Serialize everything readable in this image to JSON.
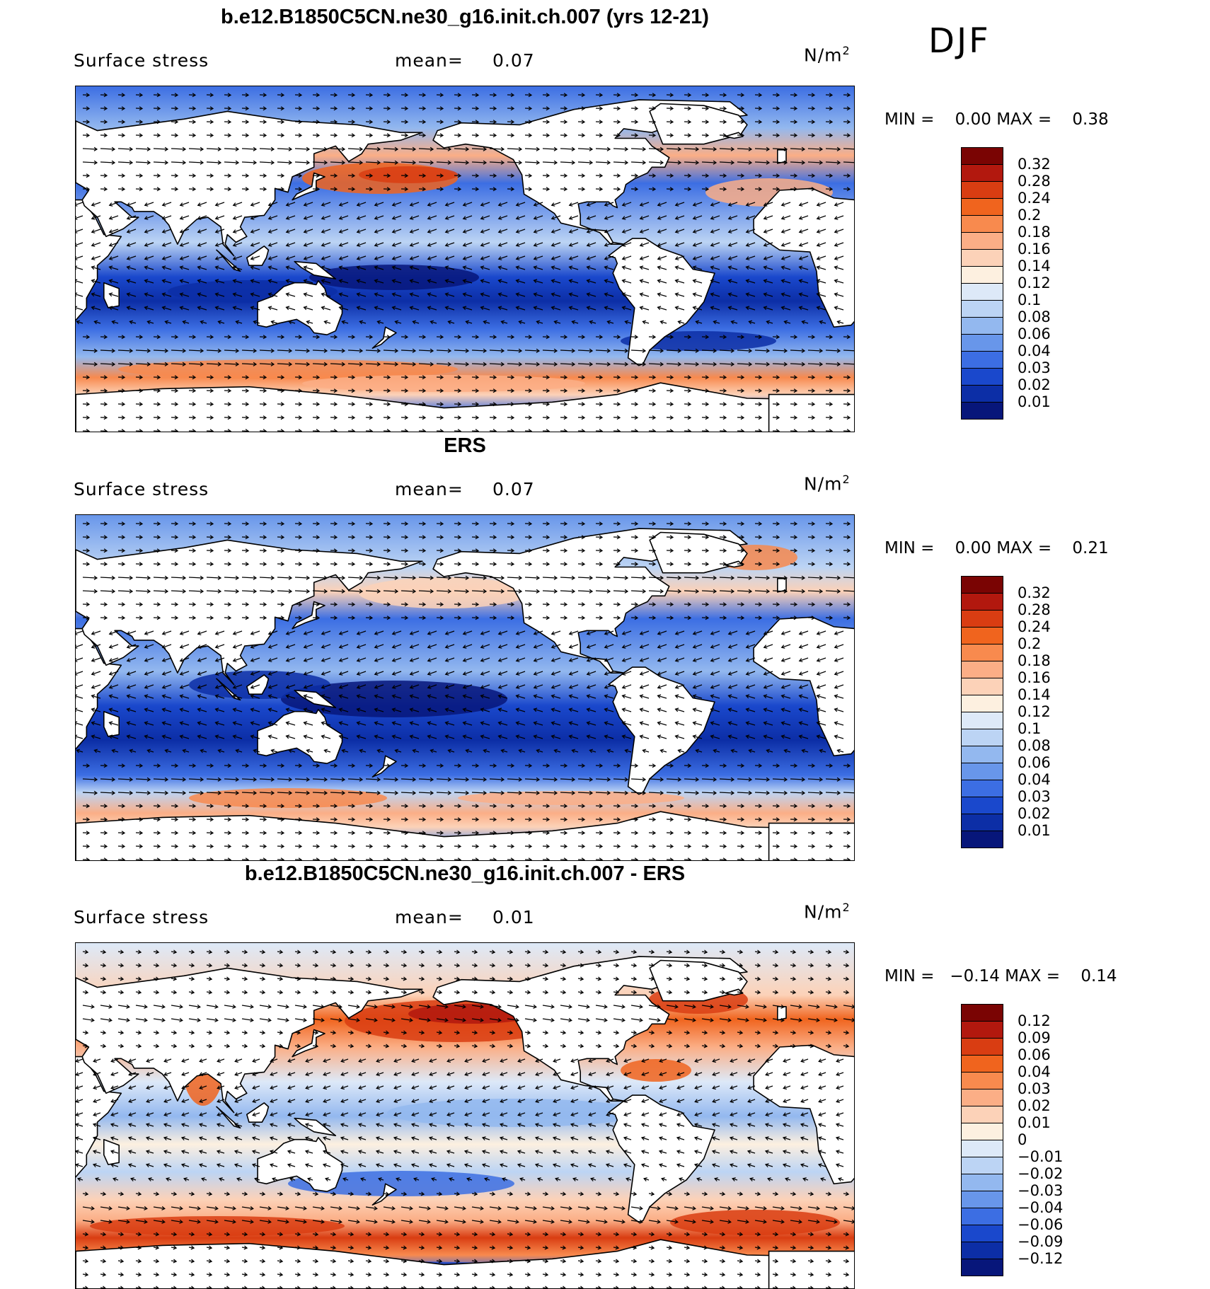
{
  "season": "DJF",
  "panels": [
    {
      "title": "b.e12.B1850C5CN.ne30_g16.init.ch.007 (yrs 12-21)",
      "variable": "Surface stress",
      "mean_label": "mean=",
      "mean_value": "0.07",
      "units_base": "N/m",
      "units_exp": "2",
      "min_label": "MIN =",
      "min_value": "0.00",
      "max_label": "MAX =",
      "max_value": "0.38",
      "colorbar_labels": [
        "0.32",
        "0.28",
        "0.24",
        "0.2",
        "0.18",
        "0.16",
        "0.14",
        "0.12",
        "0.1",
        "0.08",
        "0.06",
        "0.04",
        "0.03",
        "0.02",
        "0.01"
      ]
    },
    {
      "title": "ERS",
      "variable": "Surface stress",
      "mean_label": "mean=",
      "mean_value": "0.07",
      "units_base": "N/m",
      "units_exp": "2",
      "min_label": "MIN =",
      "min_value": "0.00",
      "max_label": "MAX =",
      "max_value": "0.21",
      "colorbar_labels": [
        "0.32",
        "0.28",
        "0.24",
        "0.2",
        "0.18",
        "0.16",
        "0.14",
        "0.12",
        "0.1",
        "0.08",
        "0.06",
        "0.04",
        "0.03",
        "0.02",
        "0.01"
      ]
    },
    {
      "title": "b.e12.B1850C5CN.ne30_g16.init.ch.007 - ERS",
      "variable": "Surface stress",
      "mean_label": "mean=",
      "mean_value": "0.01",
      "units_base": "N/m",
      "units_exp": "2",
      "min_label": "MIN =",
      "min_value": "−0.14",
      "max_label": "MAX =",
      "max_value": "0.14",
      "colorbar_labels": [
        "0.12",
        "0.09",
        "0.06",
        "0.04",
        "0.03",
        "0.02",
        "0.01",
        "0",
        "−0.01",
        "−0.02",
        "−0.03",
        "−0.04",
        "−0.06",
        "−0.09",
        "−0.12"
      ]
    }
  ],
  "colors": {
    "colorbar": [
      "#7a0403",
      "#b2180e",
      "#d93d12",
      "#f0641e",
      "#f88a4e",
      "#fbae86",
      "#fcd2b8",
      "#fdf0e0",
      "#dde9f8",
      "#bcd4f4",
      "#93b8ef",
      "#6896ea",
      "#3c6ee3",
      "#1a48cc",
      "#0c2ea6",
      "#07167a"
    ],
    "land": "#ffffff",
    "coast": "#000000"
  }
}
